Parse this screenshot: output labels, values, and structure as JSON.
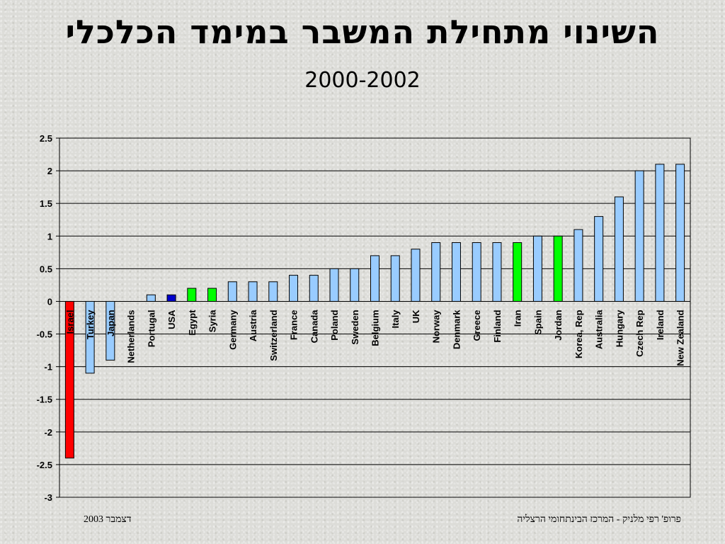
{
  "header": {
    "title": "השינוי מתחילת המשבר במימד הכלכלי",
    "subtitle": "2000-2002"
  },
  "footer": {
    "left": "דצמבר  2003",
    "right": "פרופ' רפי מלניק - המרכז הבינתחומי הרצליה"
  },
  "colors": {
    "default_bar": "#99ccff",
    "israel_bar": "#ff0000",
    "usa_bar": "#0000cc",
    "arab_bar": "#00ff00",
    "gridline": "#000000"
  },
  "chart_data": {
    "type": "bar",
    "ylim": [
      -3,
      2.5
    ],
    "yticks": [
      2.5,
      2,
      1.5,
      1,
      0.5,
      0,
      -0.5,
      -1,
      -1.5,
      -2,
      -2.5,
      -3
    ],
    "ytick_labels": [
      "2.5",
      "2",
      "1.5",
      "1",
      "0.5",
      "0",
      "-0.5",
      "-1",
      "-1.5",
      "-2",
      "-2.5",
      "-3"
    ],
    "grid": true,
    "categories": [
      "Israel",
      "Turkey",
      "Japan",
      "Netherlands",
      "Portugal",
      "USA",
      "Egypt",
      "Syria",
      "Germany",
      "Austria",
      "Switzerland",
      "France",
      "Canada",
      "Poland",
      "Sweden",
      "Belgium",
      "Italy",
      "UK",
      "Norway",
      "Denmark",
      "Greece",
      "Finland",
      "Iran",
      "Spain",
      "Jordan",
      "Korea, Rep",
      "Australia",
      "Hungary",
      "Czech Rep",
      "Ireland",
      "New Zealand"
    ],
    "values": [
      -2.4,
      -1.1,
      -0.9,
      0,
      0.1,
      0.1,
      0.2,
      0.2,
      0.3,
      0.3,
      0.3,
      0.4,
      0.4,
      0.5,
      0.5,
      0.7,
      0.7,
      0.8,
      0.9,
      0.9,
      0.9,
      0.9,
      0.9,
      1.0,
      1.0,
      1.1,
      1.3,
      1.6,
      2.0,
      2.1,
      2.1
    ],
    "bar_color_keys": [
      "israel_bar",
      "default_bar",
      "default_bar",
      "default_bar",
      "default_bar",
      "usa_bar",
      "arab_bar",
      "arab_bar",
      "default_bar",
      "default_bar",
      "default_bar",
      "default_bar",
      "default_bar",
      "default_bar",
      "default_bar",
      "default_bar",
      "default_bar",
      "default_bar",
      "default_bar",
      "default_bar",
      "default_bar",
      "default_bar",
      "arab_bar",
      "default_bar",
      "arab_bar",
      "default_bar",
      "default_bar",
      "default_bar",
      "default_bar",
      "default_bar",
      "default_bar"
    ]
  }
}
